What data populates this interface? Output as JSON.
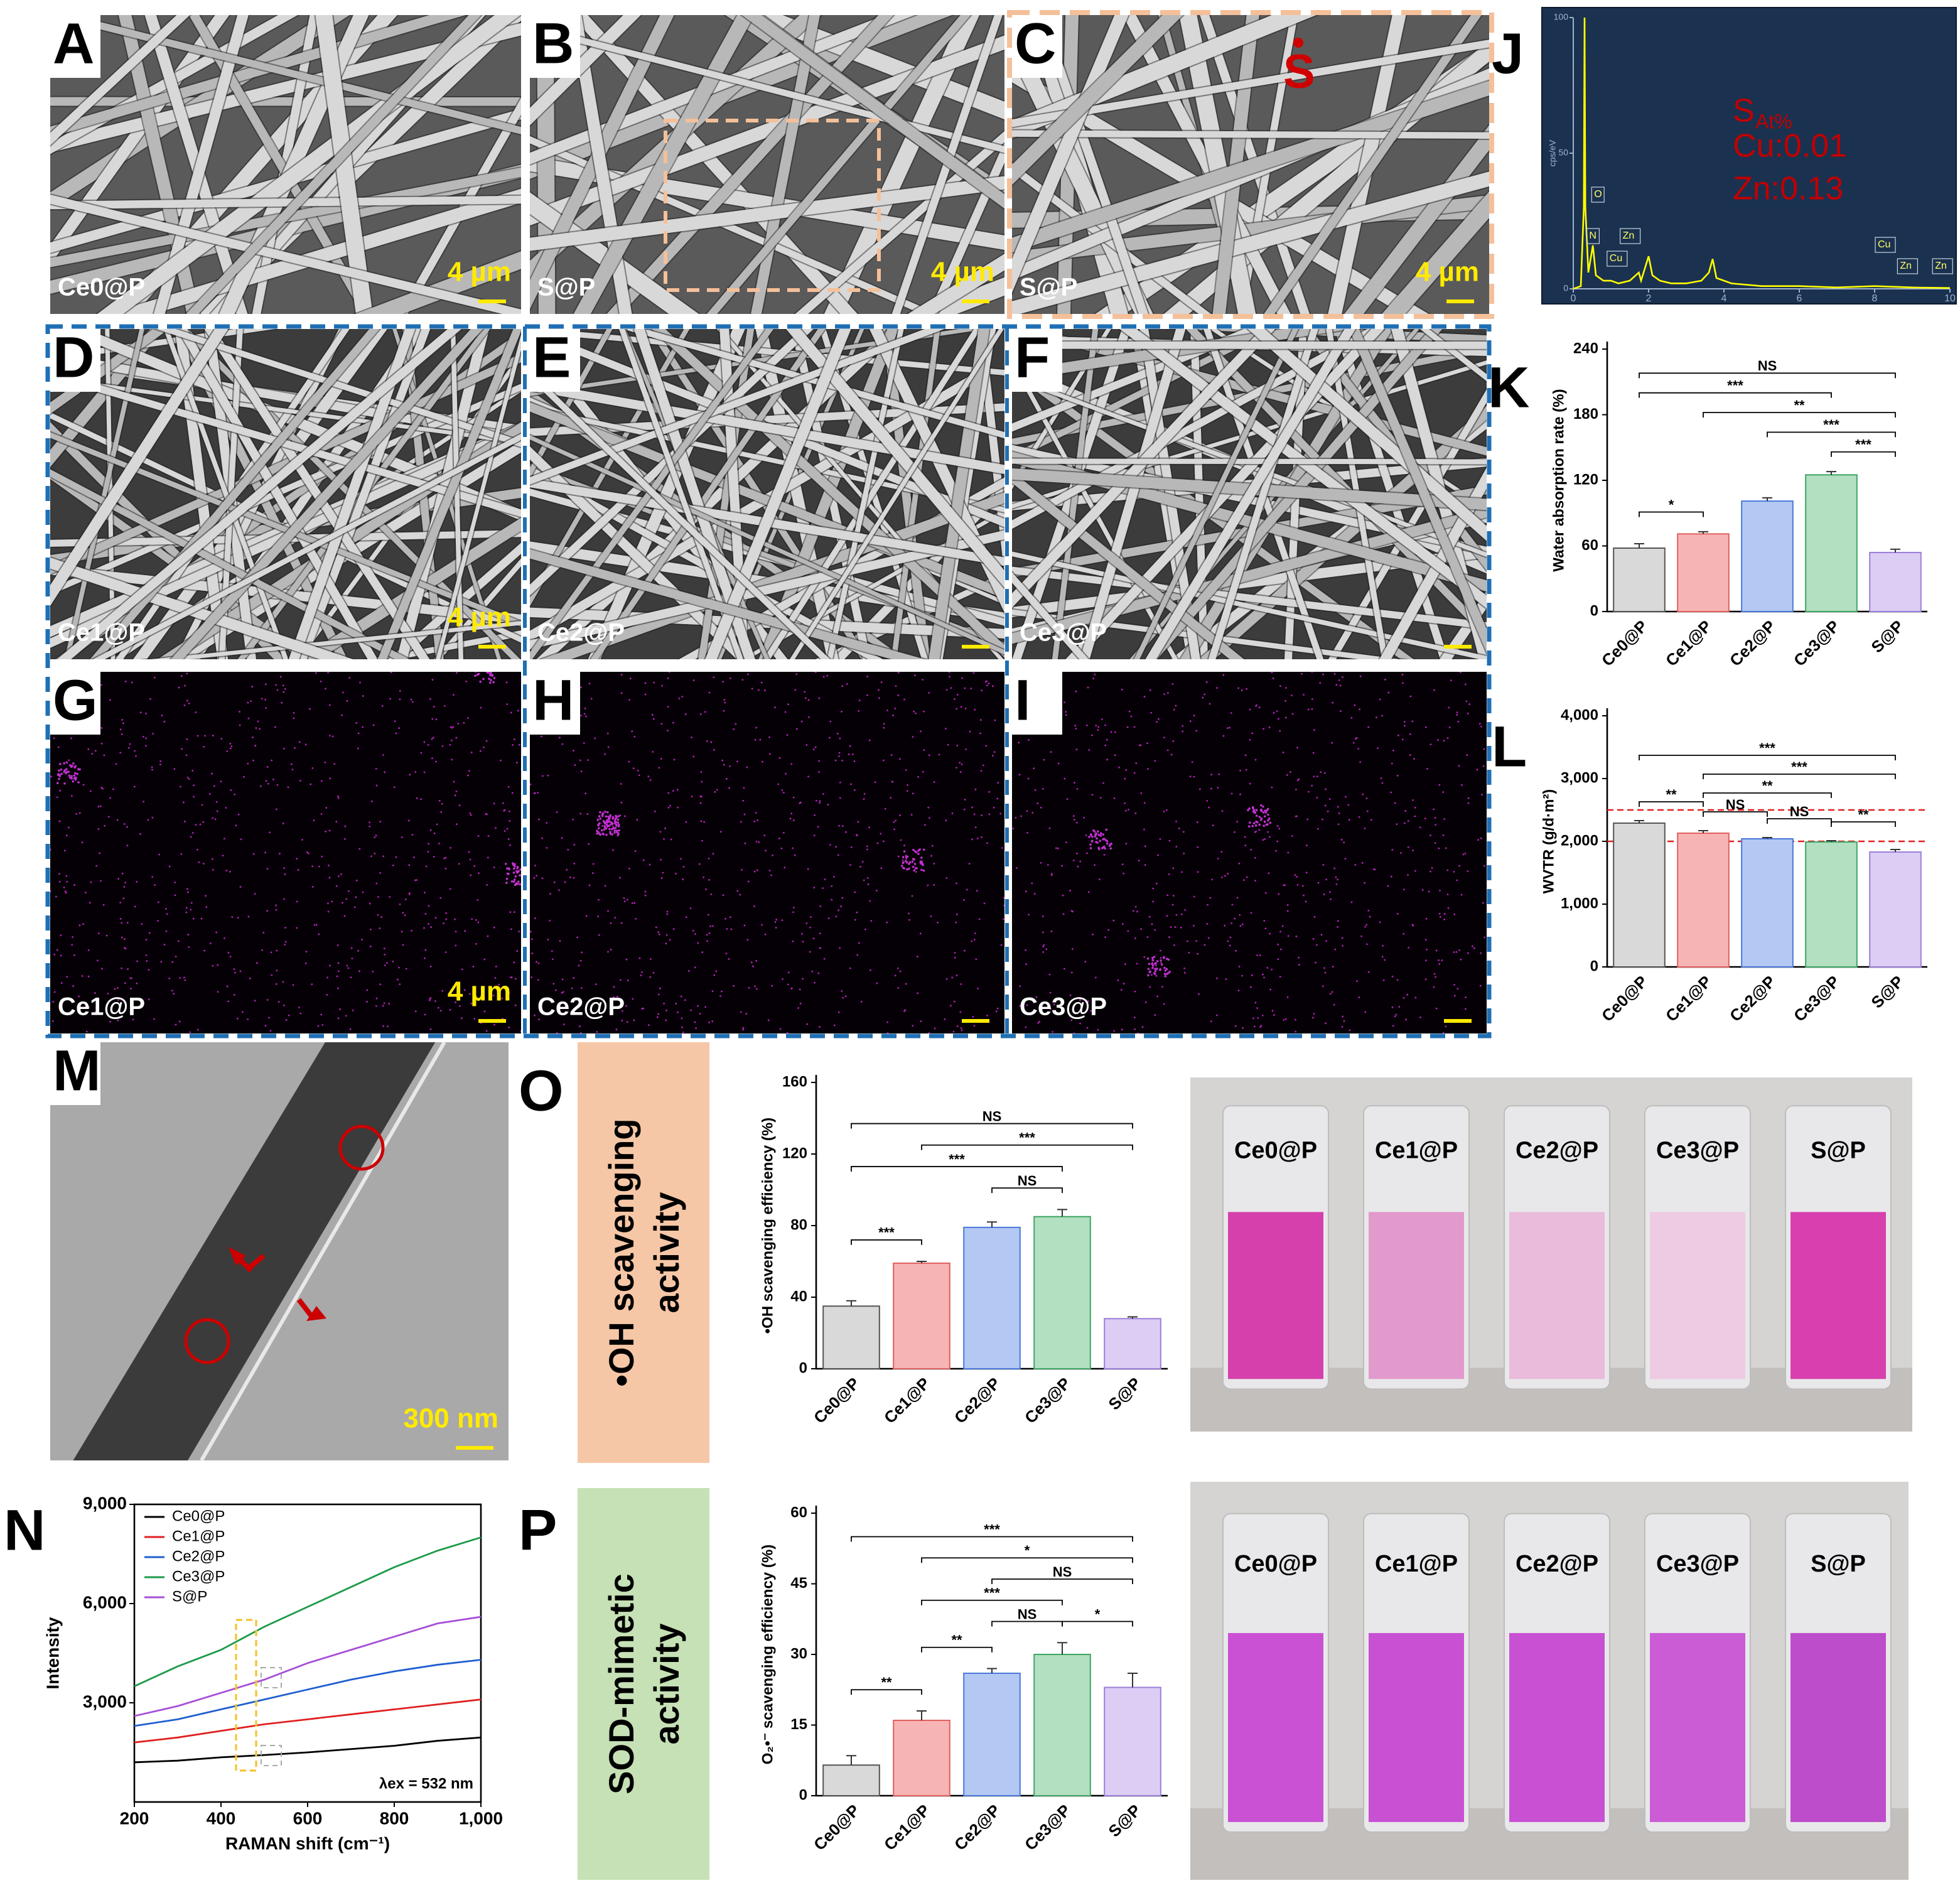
{
  "panels": [
    {
      "letter": "A",
      "sample": "Ce0@P",
      "scale_bar": "4 µm"
    },
    {
      "letter": "B",
      "sample": "S@P",
      "scale_bar": "4 µm"
    },
    {
      "letter": "C",
      "sample": "S@P",
      "scale_bar": "4 µm",
      "marker": "S"
    },
    {
      "letter": "D",
      "sample": "Ce1@P",
      "scale_bar": "4 µm"
    },
    {
      "letter": "E",
      "sample": "Ce2@P"
    },
    {
      "letter": "F",
      "sample": "Ce3@P"
    },
    {
      "letter": "G",
      "sample": "Ce1@P",
      "scale_bar": "4 µm"
    },
    {
      "letter": "H",
      "sample": "Ce2@P"
    },
    {
      "letter": "I",
      "sample": "Ce3@P"
    },
    {
      "letter": "M",
      "scale_bar": "300 nm"
    }
  ],
  "chart_data": [
    {
      "type": "spectrum",
      "panel_letter": "J",
      "ylabel": "cps/eV",
      "color": "#ffff00",
      "x": [
        0,
        0.2,
        0.28,
        0.3,
        0.32,
        0.4,
        0.52,
        0.6,
        0.8,
        1.0,
        1.2,
        1.5,
        1.74,
        1.8,
        2.0,
        2.1,
        2.3,
        2.6,
        3.0,
        3.4,
        3.6,
        3.7,
        3.8,
        4.2,
        5,
        6,
        7,
        8,
        9,
        10
      ],
      "values": [
        0,
        1,
        30,
        100,
        30,
        6,
        16,
        5,
        3,
        3,
        2,
        3,
        6,
        3,
        12,
        5,
        3,
        2,
        2,
        3,
        6,
        11,
        4,
        2,
        1,
        1,
        0.5,
        1,
        0.5,
        0.3
      ],
      "xlim": [
        0,
        10
      ],
      "xticks": [
        0,
        2,
        4,
        6,
        8,
        10
      ],
      "ylim": [
        0,
        100
      ],
      "yticks": [
        0,
        50,
        100
      ],
      "peaks": [
        {
          "label": "O",
          "x": 0.52
        },
        {
          "label": "N",
          "x": 0.39
        },
        {
          "label": "Zn",
          "x": 1.01
        },
        {
          "label": "Cu",
          "x": 0.93
        },
        {
          "label": "Cu",
          "x": 8.05
        },
        {
          "label": "Zn",
          "x": 8.64
        },
        {
          "label": "Zn",
          "x": 9.57
        }
      ],
      "composition": {
        "symbol": "S",
        "subscript": "At%",
        "lines": [
          "Cu:0.01",
          "Zn:0.13"
        ]
      }
    },
    {
      "type": "bar",
      "panel_letter": "K",
      "ylabel": "Water absorption rate (%)",
      "categories": [
        "Ce0@P",
        "Ce1@P",
        "Ce2@P",
        "Ce3@P",
        "S@P"
      ],
      "values": [
        58,
        71,
        101,
        125,
        54
      ],
      "errors": [
        4,
        2,
        3,
        3,
        3
      ],
      "colors": [
        "#d9d9d9",
        "#f7b4b4",
        "#b4c8f4",
        "#b2e0c0",
        "#dccdf4"
      ],
      "edge_colors": [
        "#555555",
        "#e06060",
        "#4a78d8",
        "#3fa564",
        "#9b7fd8"
      ],
      "ylim": [
        0,
        240
      ],
      "yticks": [
        0,
        60,
        120,
        180,
        240
      ],
      "brackets": [
        {
          "between": [
            "Ce0@P",
            "S@P"
          ],
          "label": "NS"
        },
        {
          "between": [
            "Ce1@P",
            "S@P"
          ],
          "label": "**"
        },
        {
          "between": [
            "Ce2@P",
            "S@P"
          ],
          "label": "***"
        },
        {
          "between": [
            "Ce0@P",
            "Ce3@P"
          ],
          "label": "***"
        },
        {
          "between": [
            "Ce3@P",
            "S@P"
          ],
          "label": "***"
        },
        {
          "between": [
            "Ce0@P",
            "Ce1@P"
          ],
          "label": "*"
        }
      ]
    },
    {
      "type": "bar",
      "panel_letter": "L",
      "ylabel": "WVTR (g/d·m²)",
      "categories": [
        "Ce0@P",
        "Ce1@P",
        "Ce2@P",
        "Ce3@P",
        "S@P"
      ],
      "values": [
        2290,
        2130,
        2040,
        1990,
        1830
      ],
      "errors": [
        40,
        40,
        20,
        20,
        40
      ],
      "colors": [
        "#d9d9d9",
        "#f7b4b4",
        "#b4c8f4",
        "#b2e0c0",
        "#dccdf4"
      ],
      "edge_colors": [
        "#555555",
        "#e06060",
        "#4a78d8",
        "#3fa564",
        "#9b7fd8"
      ],
      "ylim": [
        0,
        4000
      ],
      "yticks": [
        0,
        {
          "value": 1000,
          "label": "1,000"
        },
        {
          "value": 2000,
          "label": "2,000"
        },
        {
          "value": 3000,
          "label": "3,000"
        },
        {
          "value": 4000,
          "label": "4,000"
        }
      ],
      "ref_lines": [
        2500,
        2000
      ],
      "brackets": [
        {
          "between": [
            "Ce0@P",
            "S@P"
          ],
          "label": "***"
        },
        {
          "between": [
            "Ce1@P",
            "S@P"
          ],
          "label": "***"
        },
        {
          "between": [
            "Ce1@P",
            "Ce3@P"
          ],
          "label": "**"
        },
        {
          "between": [
            "Ce0@P",
            "Ce1@P"
          ],
          "label": "**"
        },
        {
          "between": [
            "Ce1@P",
            "Ce2@P"
          ],
          "label": "NS"
        },
        {
          "between": [
            "Ce2@P",
            "Ce3@P"
          ],
          "label": "NS"
        },
        {
          "between": [
            "Ce3@P",
            "S@P"
          ],
          "label": "**"
        }
      ]
    },
    {
      "type": "line",
      "panel_letter": "N",
      "xlabel": "RAMAN shift (cm⁻¹)",
      "ylabel": "Intensity",
      "annotation": "λex = 532 nm",
      "x": [
        200,
        300,
        400,
        500,
        600,
        700,
        800,
        900,
        1000
      ],
      "series": [
        {
          "name": "Ce0@P",
          "color": "#000000",
          "values": [
            1200,
            1250,
            1350,
            1420,
            1500,
            1600,
            1700,
            1850,
            1950
          ]
        },
        {
          "name": "Ce1@P",
          "color": "#e02020",
          "values": [
            1800,
            1950,
            2150,
            2350,
            2500,
            2650,
            2800,
            2950,
            3100
          ]
        },
        {
          "name": "Ce2@P",
          "color": "#1f5fd0",
          "values": [
            2300,
            2500,
            2800,
            3100,
            3400,
            3700,
            3950,
            4150,
            4300
          ]
        },
        {
          "name": "Ce3@P",
          "color": "#1e9a4a",
          "values": [
            3500,
            4100,
            4600,
            5300,
            5900,
            6500,
            7100,
            7600,
            8000
          ]
        },
        {
          "name": "S@P",
          "color": "#a64fd8",
          "values": [
            2600,
            2900,
            3300,
            3700,
            4200,
            4600,
            5000,
            5400,
            5600
          ]
        }
      ],
      "xlim": [
        200,
        1000
      ],
      "xticks": [
        200,
        400,
        600,
        800,
        {
          "value": 1000,
          "label": "1,000"
        }
      ],
      "ylim": [
        0,
        9000
      ],
      "yticks": [
        {
          "value": 3000,
          "label": "3,000"
        },
        {
          "value": 6000,
          "label": "6,000"
        },
        {
          "value": 9000,
          "label": "9,000"
        }
      ]
    },
    {
      "type": "bar",
      "panel_letter": "O",
      "side_title": [
        "•OH scavenging",
        "activity"
      ],
      "ylabel": "•OH scavenging efficiency (%)",
      "categories": [
        "Ce0@P",
        "Ce1@P",
        "Ce2@P",
        "Ce3@P",
        "S@P"
      ],
      "values": [
        35,
        59,
        79,
        85,
        28
      ],
      "errors": [
        3,
        1,
        3,
        4,
        1
      ],
      "colors": [
        "#d9d9d9",
        "#f7b4b4",
        "#b4c8f4",
        "#b2e0c0",
        "#dccdf4"
      ],
      "edge_colors": [
        "#555555",
        "#e06060",
        "#4a78d8",
        "#3fa564",
        "#9b7fd8"
      ],
      "ylim": [
        0,
        160
      ],
      "yticks": [
        0,
        40,
        80,
        120,
        160
      ],
      "brackets": [
        {
          "between": [
            "Ce0@P",
            "S@P"
          ],
          "label": "NS"
        },
        {
          "between": [
            "Ce0@P",
            "Ce3@P"
          ],
          "label": "***"
        },
        {
          "between": [
            "Ce1@P",
            "S@P"
          ],
          "label": "***"
        },
        {
          "between": [
            "Ce2@P",
            "Ce3@P"
          ],
          "label": "NS"
        },
        {
          "between": [
            "Ce0@P",
            "Ce1@P"
          ],
          "label": "***"
        }
      ],
      "photo_labels": [
        "Ce0@P",
        "Ce1@P",
        "Ce2@P",
        "Ce3@P",
        "S@P"
      ]
    },
    {
      "type": "bar",
      "panel_letter": "P",
      "side_title": [
        "SOD-mimetic",
        "activity"
      ],
      "ylabel": "O₂•⁻ scavenging efficiency (%)",
      "categories": [
        "Ce0@P",
        "Ce1@P",
        "Ce2@P",
        "Ce3@P",
        "S@P"
      ],
      "values": [
        6.5,
        16,
        26,
        30,
        23
      ],
      "errors": [
        2,
        2,
        1,
        2.5,
        3
      ],
      "colors": [
        "#d9d9d9",
        "#f7b4b4",
        "#b4c8f4",
        "#b2e0c0",
        "#dccdf4"
      ],
      "edge_colors": [
        "#555555",
        "#e06060",
        "#4a78d8",
        "#3fa564",
        "#9b7fd8"
      ],
      "ylim": [
        0,
        60
      ],
      "yticks": [
        0,
        15,
        30,
        45,
        60
      ],
      "brackets": [
        {
          "between": [
            "Ce0@P",
            "S@P"
          ],
          "label": "***"
        },
        {
          "between": [
            "Ce1@P",
            "S@P"
          ],
          "label": "*"
        },
        {
          "between": [
            "Ce1@P",
            "Ce3@P"
          ],
          "label": "***"
        },
        {
          "between": [
            "Ce2@P",
            "S@P"
          ],
          "label": "NS"
        },
        {
          "between": [
            "Ce2@P",
            "Ce3@P"
          ],
          "label": "NS"
        },
        {
          "between": [
            "Ce3@P",
            "S@P"
          ],
          "label": "*"
        },
        {
          "between": [
            "Ce1@P",
            "Ce2@P"
          ],
          "label": "**"
        },
        {
          "between": [
            "Ce0@P",
            "Ce1@P"
          ],
          "label": "**"
        }
      ],
      "photo_labels": [
        "Ce0@P",
        "Ce1@P",
        "Ce2@P",
        "Ce3@P",
        "S@P"
      ]
    }
  ]
}
